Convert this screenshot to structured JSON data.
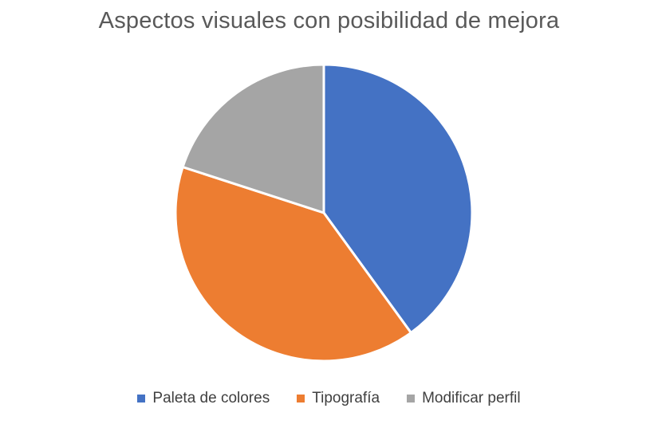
{
  "chart_data": {
    "type": "pie",
    "title": "Aspectos visuales con posibilidad de mejora",
    "categories": [
      "Paleta de colores",
      "Tipografía",
      "Modificar perfil"
    ],
    "values": [
      40,
      40,
      20
    ],
    "colors": [
      "#4472C4",
      "#ED7D31",
      "#A5A5A5"
    ],
    "start_angle_deg": 0,
    "direction": "clockwise",
    "legend": "bottom"
  }
}
